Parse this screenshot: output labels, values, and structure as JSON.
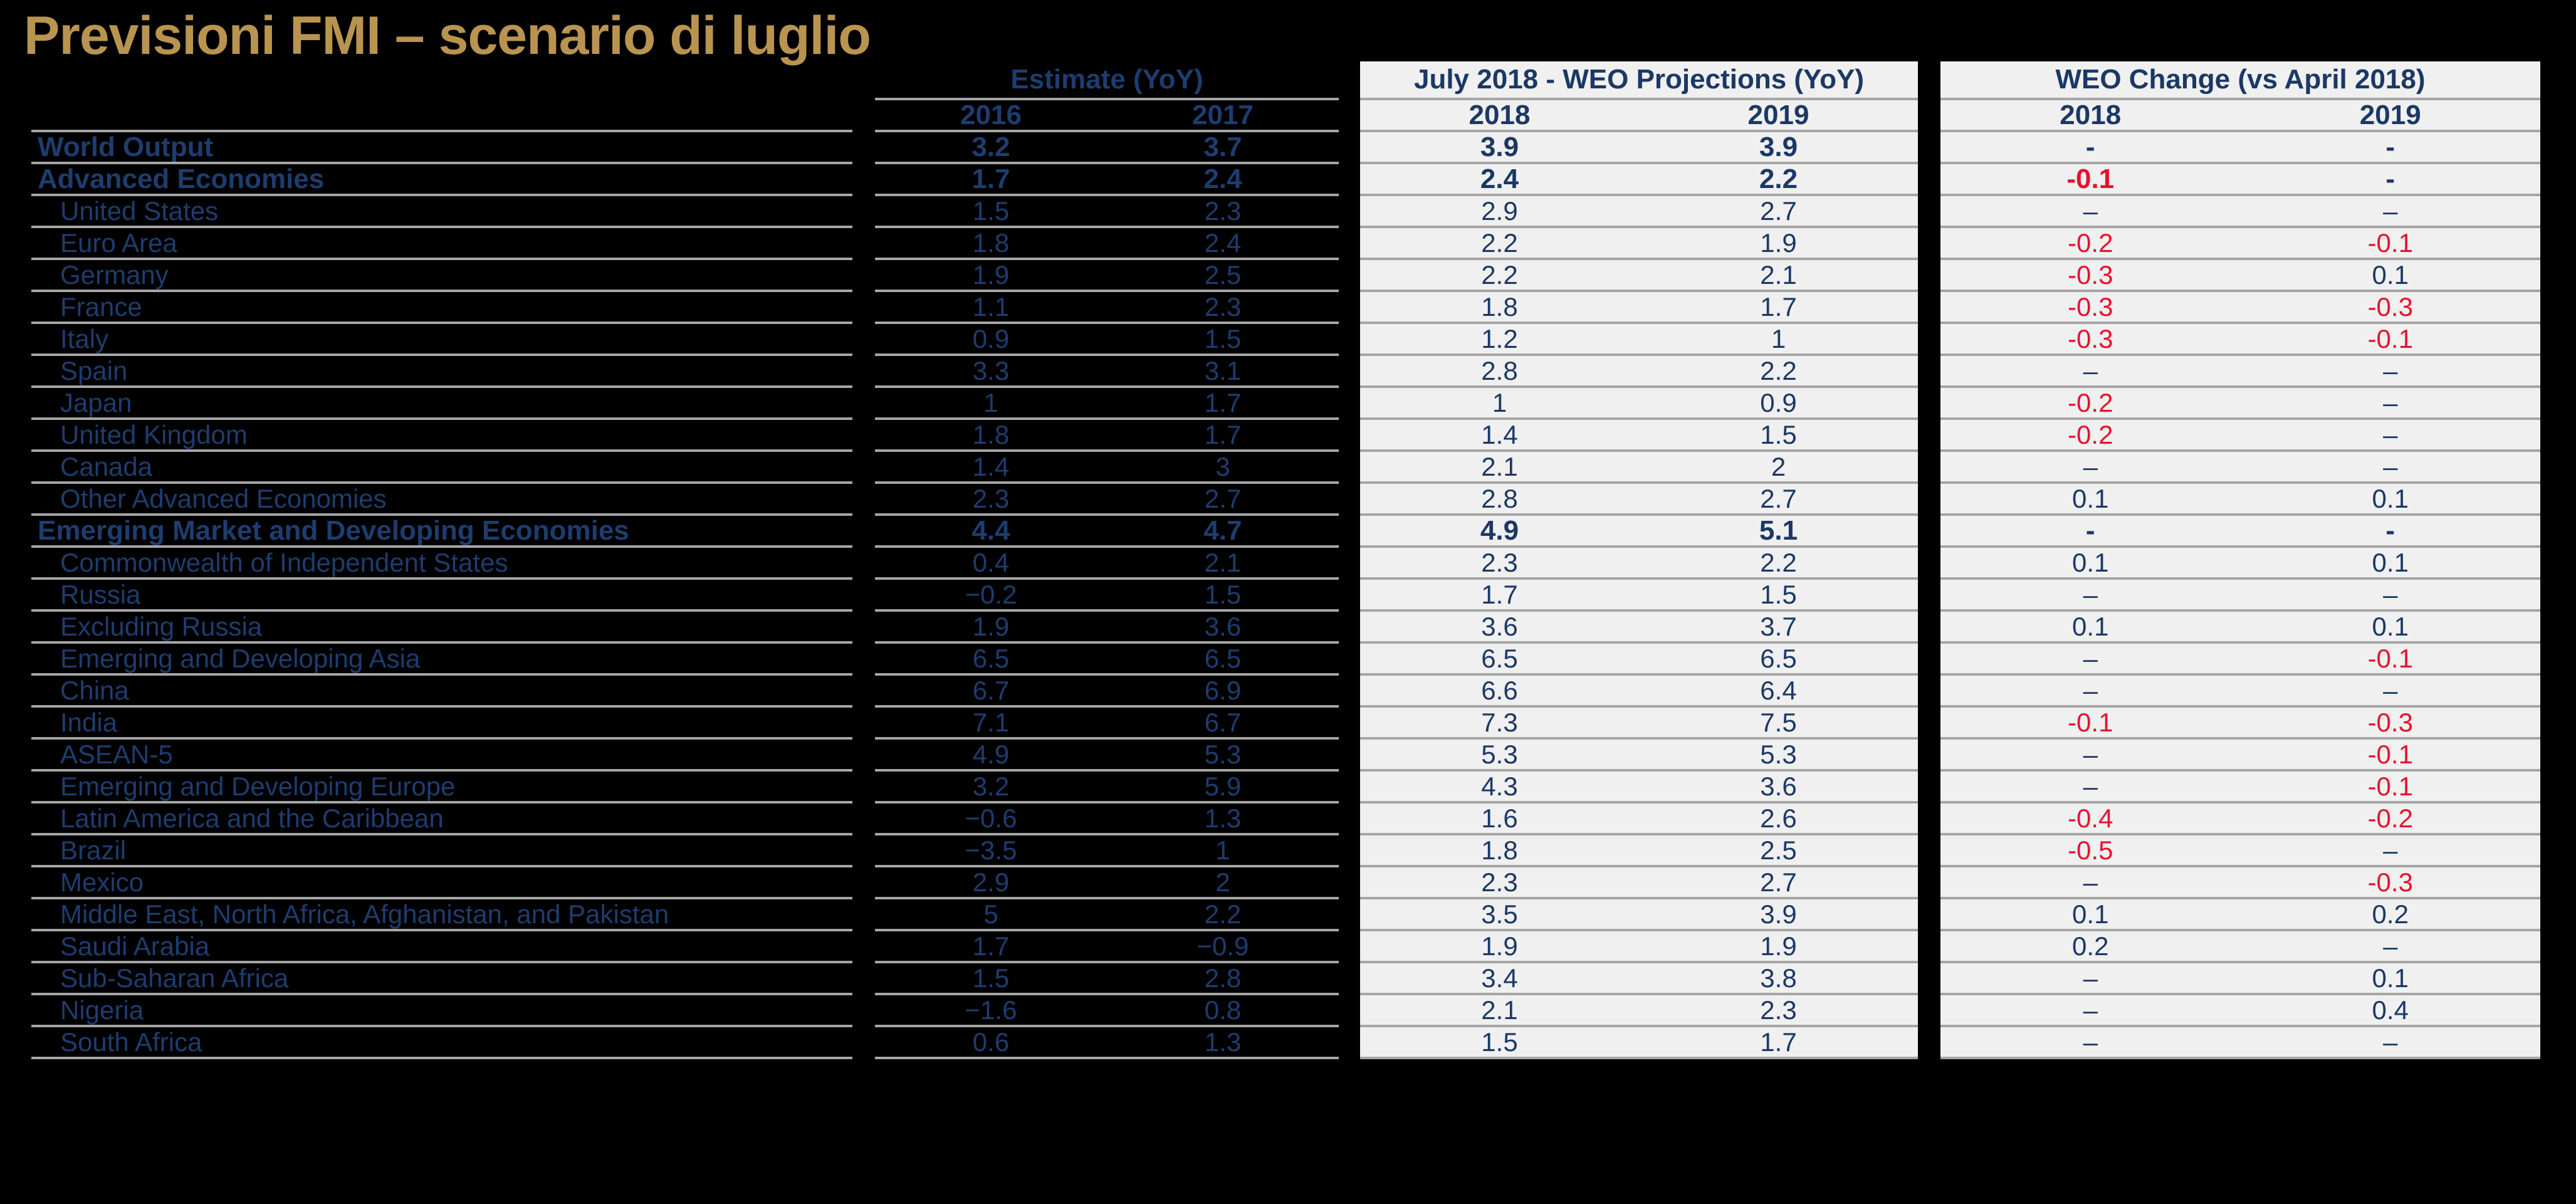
{
  "title": "Previsioni FMI – scenario di luglio",
  "colors": {
    "background": "#000000",
    "title_gold": "#B99450",
    "navy_text": "#1B3866",
    "negative_red": "#E8112D",
    "panel_background": "#F0F0F0",
    "grid_line": "#A6A6A6"
  },
  "table": {
    "groups": [
      {
        "id": "estimate",
        "header": "Estimate (YoY)",
        "years": [
          "2016",
          "2017"
        ]
      },
      {
        "id": "july_projections",
        "header": "July 2018 - WEO Projections (YoY)",
        "years": [
          "2018",
          "2019"
        ]
      },
      {
        "id": "weo_change",
        "header": "WEO Change (vs April 2018)",
        "years": [
          "2018",
          "2019"
        ]
      }
    ],
    "rows": [
      {
        "label": "World Output",
        "bold": true,
        "indent": false,
        "estimate": [
          "3.2",
          "3.7"
        ],
        "projections": [
          "3.9",
          "3.9"
        ],
        "change": [
          "-",
          "-"
        ]
      },
      {
        "label": "Advanced Economies",
        "bold": true,
        "indent": false,
        "estimate": [
          "1.7",
          "2.4"
        ],
        "projections": [
          "2.4",
          "2.2"
        ],
        "change": [
          "-0.1",
          "-"
        ]
      },
      {
        "label": "United States",
        "bold": false,
        "indent": true,
        "estimate": [
          "1.5",
          "2.3"
        ],
        "projections": [
          "2.9",
          "2.7"
        ],
        "change": [
          "–",
          "–"
        ]
      },
      {
        "label": "Euro Area",
        "bold": false,
        "indent": true,
        "estimate": [
          "1.8",
          "2.4"
        ],
        "projections": [
          "2.2",
          "1.9"
        ],
        "change": [
          "-0.2",
          "-0.1"
        ]
      },
      {
        "label": "Germany",
        "bold": false,
        "indent": true,
        "estimate": [
          "1.9",
          "2.5"
        ],
        "projections": [
          "2.2",
          "2.1"
        ],
        "change": [
          "-0.3",
          "0.1"
        ]
      },
      {
        "label": "France",
        "bold": false,
        "indent": true,
        "estimate": [
          "1.1",
          "2.3"
        ],
        "projections": [
          "1.8",
          "1.7"
        ],
        "change": [
          "-0.3",
          "-0.3"
        ]
      },
      {
        "label": "Italy",
        "bold": false,
        "indent": true,
        "estimate": [
          "0.9",
          "1.5"
        ],
        "projections": [
          "1.2",
          "1"
        ],
        "change": [
          "-0.3",
          "-0.1"
        ]
      },
      {
        "label": "Spain",
        "bold": false,
        "indent": true,
        "estimate": [
          "3.3",
          "3.1"
        ],
        "projections": [
          "2.8",
          "2.2"
        ],
        "change": [
          "–",
          "–"
        ]
      },
      {
        "label": "Japan",
        "bold": false,
        "indent": true,
        "estimate": [
          "1",
          "1.7"
        ],
        "projections": [
          "1",
          "0.9"
        ],
        "change": [
          "-0.2",
          "–"
        ]
      },
      {
        "label": "United Kingdom",
        "bold": false,
        "indent": true,
        "estimate": [
          "1.8",
          "1.7"
        ],
        "projections": [
          "1.4",
          "1.5"
        ],
        "change": [
          "-0.2",
          "–"
        ]
      },
      {
        "label": "Canada",
        "bold": false,
        "indent": true,
        "estimate": [
          "1.4",
          "3"
        ],
        "projections": [
          "2.1",
          "2"
        ],
        "change": [
          "–",
          "–"
        ]
      },
      {
        "label": "Other Advanced Economies",
        "bold": false,
        "indent": true,
        "estimate": [
          "2.3",
          "2.7"
        ],
        "projections": [
          "2.8",
          "2.7"
        ],
        "change": [
          "0.1",
          "0.1"
        ]
      },
      {
        "label": "Emerging Market and Developing Economies",
        "bold": true,
        "indent": false,
        "estimate": [
          "4.4",
          "4.7"
        ],
        "projections": [
          "4.9",
          "5.1"
        ],
        "change": [
          "-",
          "-"
        ]
      },
      {
        "label": "Commonwealth of Independent States",
        "bold": false,
        "indent": true,
        "estimate": [
          "0.4",
          "2.1"
        ],
        "projections": [
          "2.3",
          "2.2"
        ],
        "change": [
          "0.1",
          "0.1"
        ]
      },
      {
        "label": "Russia",
        "bold": false,
        "indent": true,
        "estimate": [
          "−0.2",
          "1.5"
        ],
        "projections": [
          "1.7",
          "1.5"
        ],
        "change": [
          "–",
          "–"
        ]
      },
      {
        "label": "Excluding Russia",
        "bold": false,
        "indent": true,
        "estimate": [
          "1.9",
          "3.6"
        ],
        "projections": [
          "3.6",
          "3.7"
        ],
        "change": [
          "0.1",
          "0.1"
        ]
      },
      {
        "label": "Emerging and Developing Asia",
        "bold": false,
        "indent": true,
        "estimate": [
          "6.5",
          "6.5"
        ],
        "projections": [
          "6.5",
          "6.5"
        ],
        "change": [
          "–",
          "-0.1"
        ]
      },
      {
        "label": "China",
        "bold": false,
        "indent": true,
        "estimate": [
          "6.7",
          "6.9"
        ],
        "projections": [
          "6.6",
          "6.4"
        ],
        "change": [
          "–",
          "–"
        ]
      },
      {
        "label": "India",
        "bold": false,
        "indent": true,
        "estimate": [
          "7.1",
          "6.7"
        ],
        "projections": [
          "7.3",
          "7.5"
        ],
        "change": [
          "-0.1",
          "-0.3"
        ]
      },
      {
        "label": "ASEAN-5",
        "bold": false,
        "indent": true,
        "estimate": [
          "4.9",
          "5.3"
        ],
        "projections": [
          "5.3",
          "5.3"
        ],
        "change": [
          "–",
          "-0.1"
        ]
      },
      {
        "label": "Emerging and Developing Europe",
        "bold": false,
        "indent": true,
        "estimate": [
          "3.2",
          "5.9"
        ],
        "projections": [
          "4.3",
          "3.6"
        ],
        "change": [
          "–",
          "-0.1"
        ]
      },
      {
        "label": "Latin America and the Caribbean",
        "bold": false,
        "indent": true,
        "estimate": [
          "−0.6",
          "1.3"
        ],
        "projections": [
          "1.6",
          "2.6"
        ],
        "change": [
          "-0.4",
          "-0.2"
        ]
      },
      {
        "label": "Brazil",
        "bold": false,
        "indent": true,
        "estimate": [
          "−3.5",
          "1"
        ],
        "projections": [
          "1.8",
          "2.5"
        ],
        "change": [
          "-0.5",
          "–"
        ]
      },
      {
        "label": "Mexico",
        "bold": false,
        "indent": true,
        "estimate": [
          "2.9",
          "2"
        ],
        "projections": [
          "2.3",
          "2.7"
        ],
        "change": [
          "–",
          "-0.3"
        ]
      },
      {
        "label": "Middle East, North Africa, Afghanistan, and Pakistan",
        "bold": false,
        "indent": true,
        "estimate": [
          "5",
          "2.2"
        ],
        "projections": [
          "3.5",
          "3.9"
        ],
        "change": [
          "0.1",
          "0.2"
        ]
      },
      {
        "label": "Saudi Arabia",
        "bold": false,
        "indent": true,
        "estimate": [
          "1.7",
          "−0.9"
        ],
        "projections": [
          "1.9",
          "1.9"
        ],
        "change": [
          "0.2",
          "–"
        ]
      },
      {
        "label": "Sub-Saharan Africa",
        "bold": false,
        "indent": true,
        "estimate": [
          "1.5",
          "2.8"
        ],
        "projections": [
          "3.4",
          "3.8"
        ],
        "change": [
          "–",
          "0.1"
        ]
      },
      {
        "label": "Nigeria",
        "bold": false,
        "indent": true,
        "estimate": [
          "−1.6",
          "0.8"
        ],
        "projections": [
          "2.1",
          "2.3"
        ],
        "change": [
          "–",
          "0.4"
        ]
      },
      {
        "label": "South Africa",
        "bold": false,
        "indent": true,
        "estimate": [
          "0.6",
          "1.3"
        ],
        "projections": [
          "1.5",
          "1.7"
        ],
        "change": [
          "–",
          "–"
        ]
      }
    ]
  }
}
